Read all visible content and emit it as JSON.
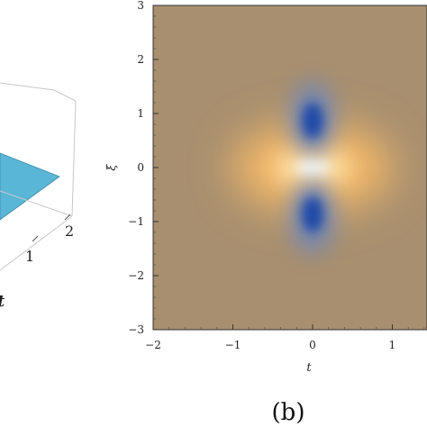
{
  "chart_data": [
    {
      "type": "surface3d",
      "panel_label": "",
      "axes": {
        "x": {
          "label": "t",
          "ticks": [
            "1",
            "2"
          ]
        }
      },
      "surface_color": "#5ab6d6",
      "note_visible": "partially cropped at the left edge"
    },
    {
      "type": "heatmap",
      "panel_label": "(b)",
      "xlabel": "t",
      "ylabel": "ξ",
      "xlim": [
        -2,
        2
      ],
      "ylim": [
        -3,
        3
      ],
      "x_ticks": [
        -2,
        -1,
        0,
        1
      ],
      "y_ticks": [
        3,
        2,
        1,
        0,
        -1,
        -2,
        -3
      ],
      "x_tick_labels": [
        "−2",
        "−1",
        "0",
        "1"
      ],
      "y_tick_labels": [
        "3",
        "2",
        "1",
        "0",
        "−1",
        "−2",
        "−3"
      ],
      "features": [
        {
          "kind": "peak",
          "t": 0,
          "xi": 0,
          "color": "#fffdf2"
        },
        {
          "kind": "trough",
          "t": 0,
          "xi": 0.9,
          "color": "#1f4aa8"
        },
        {
          "kind": "trough",
          "t": 0,
          "xi": -0.9,
          "color": "#1f4aa8"
        }
      ],
      "background_color": "#ad906c"
    }
  ]
}
